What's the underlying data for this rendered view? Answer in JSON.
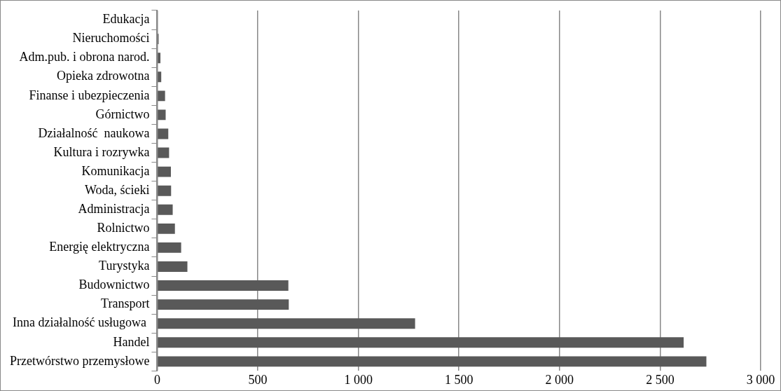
{
  "chart_data": {
    "type": "bar",
    "orientation": "horizontal",
    "categories": [
      "Edukacja",
      "Nieruchomości",
      "Adm.pub. i obrona narod.",
      "Opieka zdrowotna",
      "Finanse i ubezpieczenia",
      "Górnictwo",
      "Działalność  naukowa",
      "Kultura i rozrywka",
      "Komunikacja",
      "Woda, ścieki",
      "Administracja",
      "Rolnictwo",
      "Energię elektryczna",
      "Turystyka",
      "Budownictwo",
      "Transport",
      "Inna działalność usługowa ",
      "Handel",
      "Przetwórstwo przemysłowe"
    ],
    "values": [
      0,
      7,
      16,
      20,
      39,
      42,
      55,
      59,
      68,
      69,
      77,
      88,
      119,
      150,
      652,
      654,
      1282,
      2617,
      2730
    ],
    "color": "#595959",
    "xlim": [
      0,
      3000
    ],
    "xticks": [
      0,
      {
        "value": 500,
        "label": "500"
      },
      {
        "value": 1000,
        "label": "1 000"
      },
      {
        "value": 1500,
        "label": "1 500"
      },
      {
        "value": 2000,
        "label": "2 000"
      },
      {
        "value": 2500,
        "label": "2 500"
      },
      {
        "value": 3000,
        "label": "3 000"
      }
    ],
    "grid": "x",
    "legend": false
  }
}
